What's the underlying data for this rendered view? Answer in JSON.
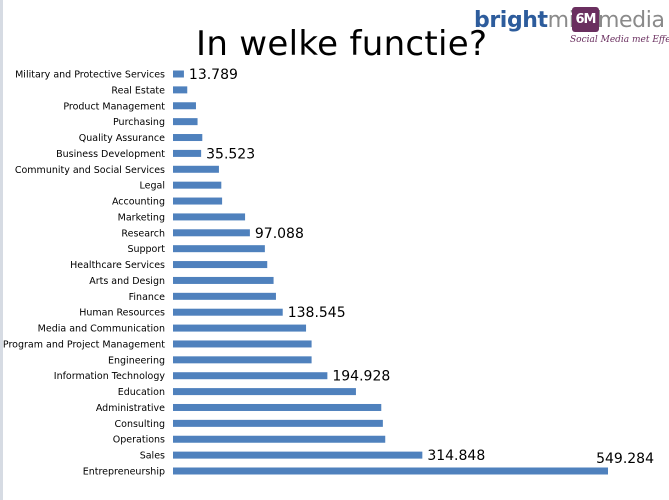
{
  "colors": {
    "bar": "#4f81bd",
    "brand_blue": "#2d5c9c",
    "brand_purple": "#6a2f5f",
    "brand_grey": "#8a8a8a"
  },
  "brand": {
    "word_part1": "bright",
    "word_part2": "mind",
    "mark": "6M",
    "word_part3": "media",
    "slogan": "Social Media met Effect"
  },
  "chart_data": {
    "type": "bar",
    "orientation": "horizontal",
    "title": "In welke functie?",
    "xlabel": "",
    "ylabel": "",
    "xlim": [
      0,
      560000
    ],
    "grid": false,
    "categories": [
      "Military and Protective Services",
      "Real Estate",
      "Product Management",
      "Purchasing",
      "Quality Assurance",
      "Business Development",
      "Community and Social Services",
      "Legal",
      "Accounting",
      "Marketing",
      "Research",
      "Support",
      "Healthcare Services",
      "Arts and Design",
      "Finance",
      "Human Resources",
      "Media and Communication",
      "Program and Project Management",
      "Engineering",
      "Information Technology",
      "Education",
      "Administrative",
      "Consulting",
      "Operations",
      "Sales",
      "Entrepreneurship"
    ],
    "values": [
      13789,
      18000,
      29000,
      31000,
      37000,
      35523,
      58000,
      61000,
      62000,
      91000,
      97088,
      116000,
      119000,
      127000,
      130000,
      138545,
      168000,
      175000,
      175000,
      194928,
      231000,
      263000,
      265000,
      268000,
      314848,
      549284
    ],
    "data_labels": [
      {
        "category": "Military and Protective Services",
        "text": "13.789"
      },
      {
        "category": "Business Development",
        "text": "35.523"
      },
      {
        "category": "Research",
        "text": "97.088"
      },
      {
        "category": "Human Resources",
        "text": "138.545"
      },
      {
        "category": "Information Technology",
        "text": "194.928"
      },
      {
        "category": "Sales",
        "text": "314.848"
      },
      {
        "category": "Entrepreneurship",
        "text": "549.284"
      }
    ]
  }
}
